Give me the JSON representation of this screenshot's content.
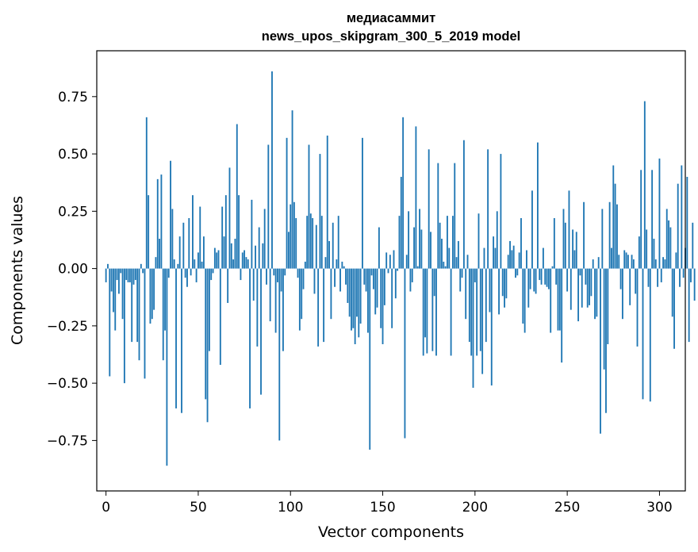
{
  "chart_data": {
    "type": "bar",
    "title": "медиасаммит",
    "subtitle": "news_upos_skipgram_300_5_2019 model",
    "xlabel": "Vector components",
    "ylabel": "Components values",
    "xlim": [
      -5,
      314
    ],
    "ylim": [
      -0.97,
      0.95
    ],
    "xticks": [
      0,
      50,
      100,
      150,
      200,
      250,
      300
    ],
    "yticks": [
      -0.75,
      -0.5,
      -0.25,
      0.0,
      0.25,
      0.5,
      0.75
    ],
    "ytick_labels": [
      "−0.75",
      "−0.50",
      "−0.25",
      "0.00",
      "0.25",
      "0.50",
      "0.75"
    ],
    "bar_color": "#1f77b4",
    "grid": false,
    "legend": "none",
    "values": [
      -0.06,
      0.02,
      -0.47,
      -0.1,
      -0.19,
      -0.27,
      -0.05,
      -0.11,
      -0.02,
      -0.22,
      -0.5,
      -0.05,
      -0.06,
      -0.06,
      -0.32,
      -0.07,
      -0.05,
      -0.32,
      -0.4,
      0.02,
      -0.02,
      -0.48,
      0.66,
      0.32,
      -0.24,
      -0.22,
      -0.18,
      0.05,
      0.39,
      0.13,
      0.41,
      -0.4,
      -0.27,
      -0.86,
      -0.04,
      0.47,
      0.26,
      0.04,
      -0.61,
      0.02,
      0.14,
      -0.63,
      0.2,
      -0.04,
      -0.08,
      0.22,
      -0.03,
      0.32,
      0.04,
      -0.06,
      0.07,
      0.27,
      0.03,
      0.14,
      -0.57,
      -0.67,
      -0.36,
      -0.05,
      -0.02,
      0.09,
      0.07,
      0.08,
      -0.42,
      0.27,
      0.14,
      0.32,
      -0.15,
      0.44,
      0.11,
      0.04,
      0.13,
      0.63,
      0.32,
      -0.05,
      0.07,
      0.08,
      0.05,
      0.04,
      -0.61,
      0.3,
      -0.14,
      0.1,
      -0.34,
      0.18,
      -0.55,
      0.11,
      0.26,
      -0.07,
      0.54,
      -0.23,
      0.86,
      -0.03,
      -0.28,
      -0.06,
      -0.75,
      -0.1,
      -0.36,
      -0.03,
      0.57,
      0.16,
      0.28,
      0.69,
      0.29,
      0.22,
      -0.04,
      -0.27,
      -0.22,
      -0.09,
      0.03,
      0.23,
      0.54,
      0.24,
      0.22,
      -0.11,
      0.19,
      -0.34,
      0.5,
      0.23,
      -0.32,
      0.05,
      0.58,
      0.12,
      -0.22,
      0.2,
      -0.08,
      0.04,
      0.23,
      -0.1,
      0.03,
      0.01,
      -0.07,
      -0.15,
      -0.21,
      -0.27,
      -0.26,
      -0.33,
      -0.21,
      -0.3,
      -0.24,
      0.57,
      -0.07,
      -0.1,
      -0.28,
      -0.79,
      -0.03,
      -0.09,
      -0.2,
      -0.17,
      0.18,
      -0.26,
      -0.33,
      -0.16,
      0.07,
      -0.02,
      0.06,
      -0.26,
      0.08,
      -0.13,
      -0.01,
      0.23,
      0.4,
      0.66,
      -0.74,
      0.06,
      0.25,
      -0.1,
      -0.06,
      0.18,
      0.62,
      0.01,
      0.26,
      0.17,
      -0.38,
      -0.3,
      -0.37,
      0.52,
      0.16,
      -0.36,
      -0.12,
      -0.38,
      0.46,
      0.2,
      0.13,
      0.03,
      0.01,
      0.23,
      0.09,
      -0.38,
      0.23,
      0.46,
      0.05,
      0.12,
      -0.1,
      -0.04,
      0.56,
      -0.22,
      0.06,
      -0.32,
      -0.38,
      -0.52,
      -0.06,
      -0.38,
      0.24,
      -0.36,
      -0.46,
      0.09,
      -0.32,
      0.52,
      -0.19,
      -0.51,
      0.14,
      0.09,
      0.25,
      -0.2,
      0.5,
      -0.12,
      -0.17,
      -0.13,
      0.06,
      0.12,
      0.08,
      0.1,
      -0.04,
      -0.03,
      0.07,
      0.22,
      -0.24,
      -0.28,
      0.08,
      -0.17,
      -0.09,
      0.34,
      -0.1,
      -0.11,
      0.55,
      -0.05,
      -0.07,
      0.09,
      -0.07,
      -0.08,
      -0.09,
      -0.28,
      0.01,
      0.22,
      -0.07,
      -0.27,
      -0.27,
      -0.41,
      0.26,
      0.2,
      -0.1,
      0.34,
      -0.18,
      0.17,
      0.08,
      0.16,
      -0.23,
      -0.03,
      -0.17,
      0.29,
      -0.07,
      -0.17,
      -0.16,
      -0.12,
      0.04,
      -0.22,
      -0.21,
      0.05,
      -0.72,
      0.26,
      -0.44,
      -0.63,
      -0.33,
      0.29,
      0.09,
      0.45,
      0.37,
      0.28,
      0.06,
      -0.09,
      -0.22,
      0.08,
      0.07,
      0.06,
      -0.16,
      0.06,
      0.04,
      -0.11,
      -0.34,
      0.14,
      0.43,
      -0.57,
      0.73,
      0.17,
      -0.08,
      -0.58,
      0.43,
      0.13,
      0.04,
      -0.08,
      0.48,
      -0.06,
      0.05,
      0.04,
      0.26,
      0.21,
      0.18,
      -0.21,
      -0.35,
      0.07,
      0.37,
      -0.08,
      0.45,
      -0.04,
      0.09,
      0.4,
      -0.32,
      -0.06,
      0.2,
      -0.14
    ]
  }
}
